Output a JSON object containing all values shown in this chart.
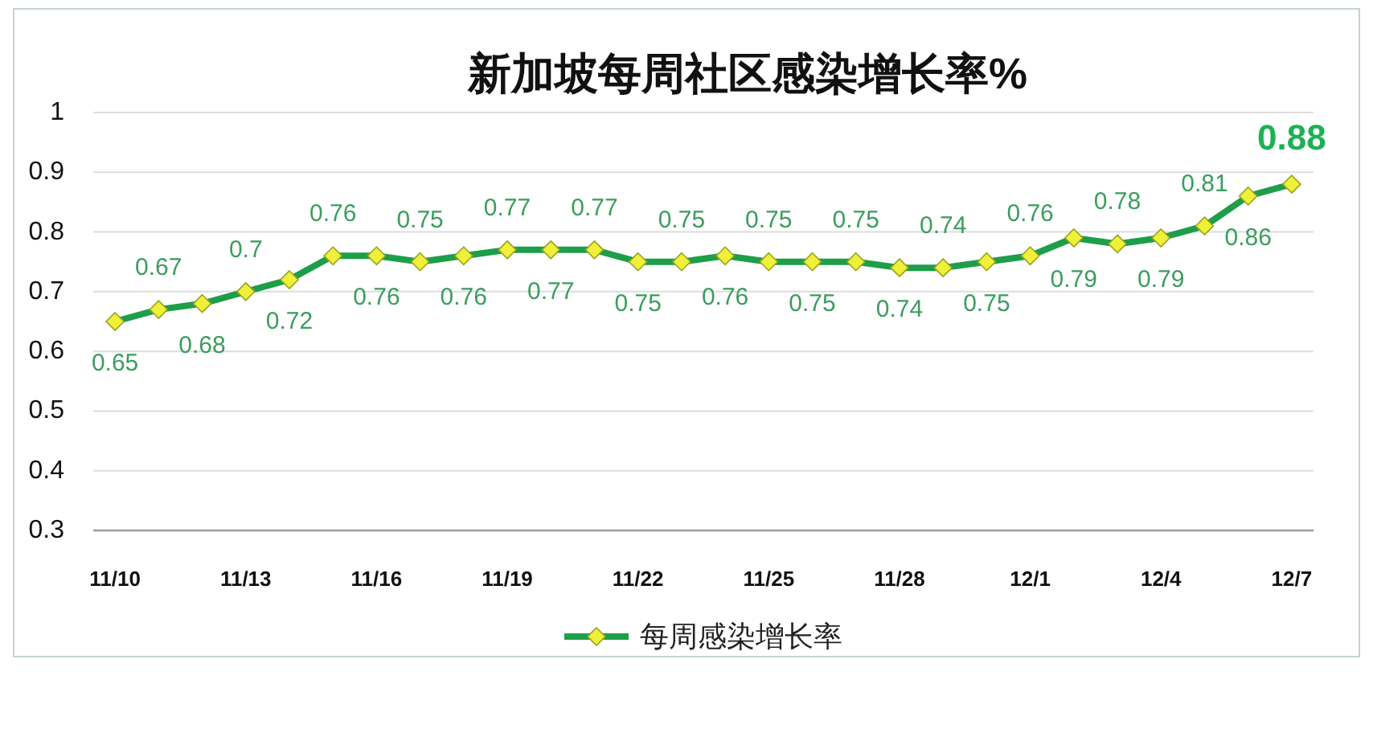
{
  "chart_data": {
    "type": "line",
    "title": "新加坡每周社区感染增长率%",
    "categories": [
      "11/10",
      null,
      null,
      "11/13",
      null,
      null,
      "11/16",
      null,
      null,
      "11/19",
      null,
      null,
      "11/22",
      null,
      null,
      "11/25",
      null,
      null,
      "11/28",
      null,
      null,
      "12/1",
      null,
      null,
      "12/4",
      null,
      null,
      "12/7"
    ],
    "series": [
      {
        "name": "每周感染增长率",
        "color": "#1e9e4a",
        "values": [
          0.65,
          0.67,
          0.68,
          0.7,
          0.72,
          0.76,
          0.76,
          0.75,
          0.76,
          0.77,
          0.77,
          0.77,
          0.75,
          0.75,
          0.76,
          0.75,
          0.75,
          0.75,
          0.74,
          0.74,
          0.75,
          0.76,
          0.79,
          0.78,
          0.79,
          0.81,
          0.86,
          0.88
        ]
      }
    ],
    "ylim": [
      0.3,
      1
    ],
    "yticks": [
      0.3,
      0.4,
      0.5,
      0.6,
      0.7,
      0.8,
      0.9,
      1
    ],
    "grid": "y",
    "legend": "bottom",
    "marker": "diamond",
    "data_labels": true
  }
}
